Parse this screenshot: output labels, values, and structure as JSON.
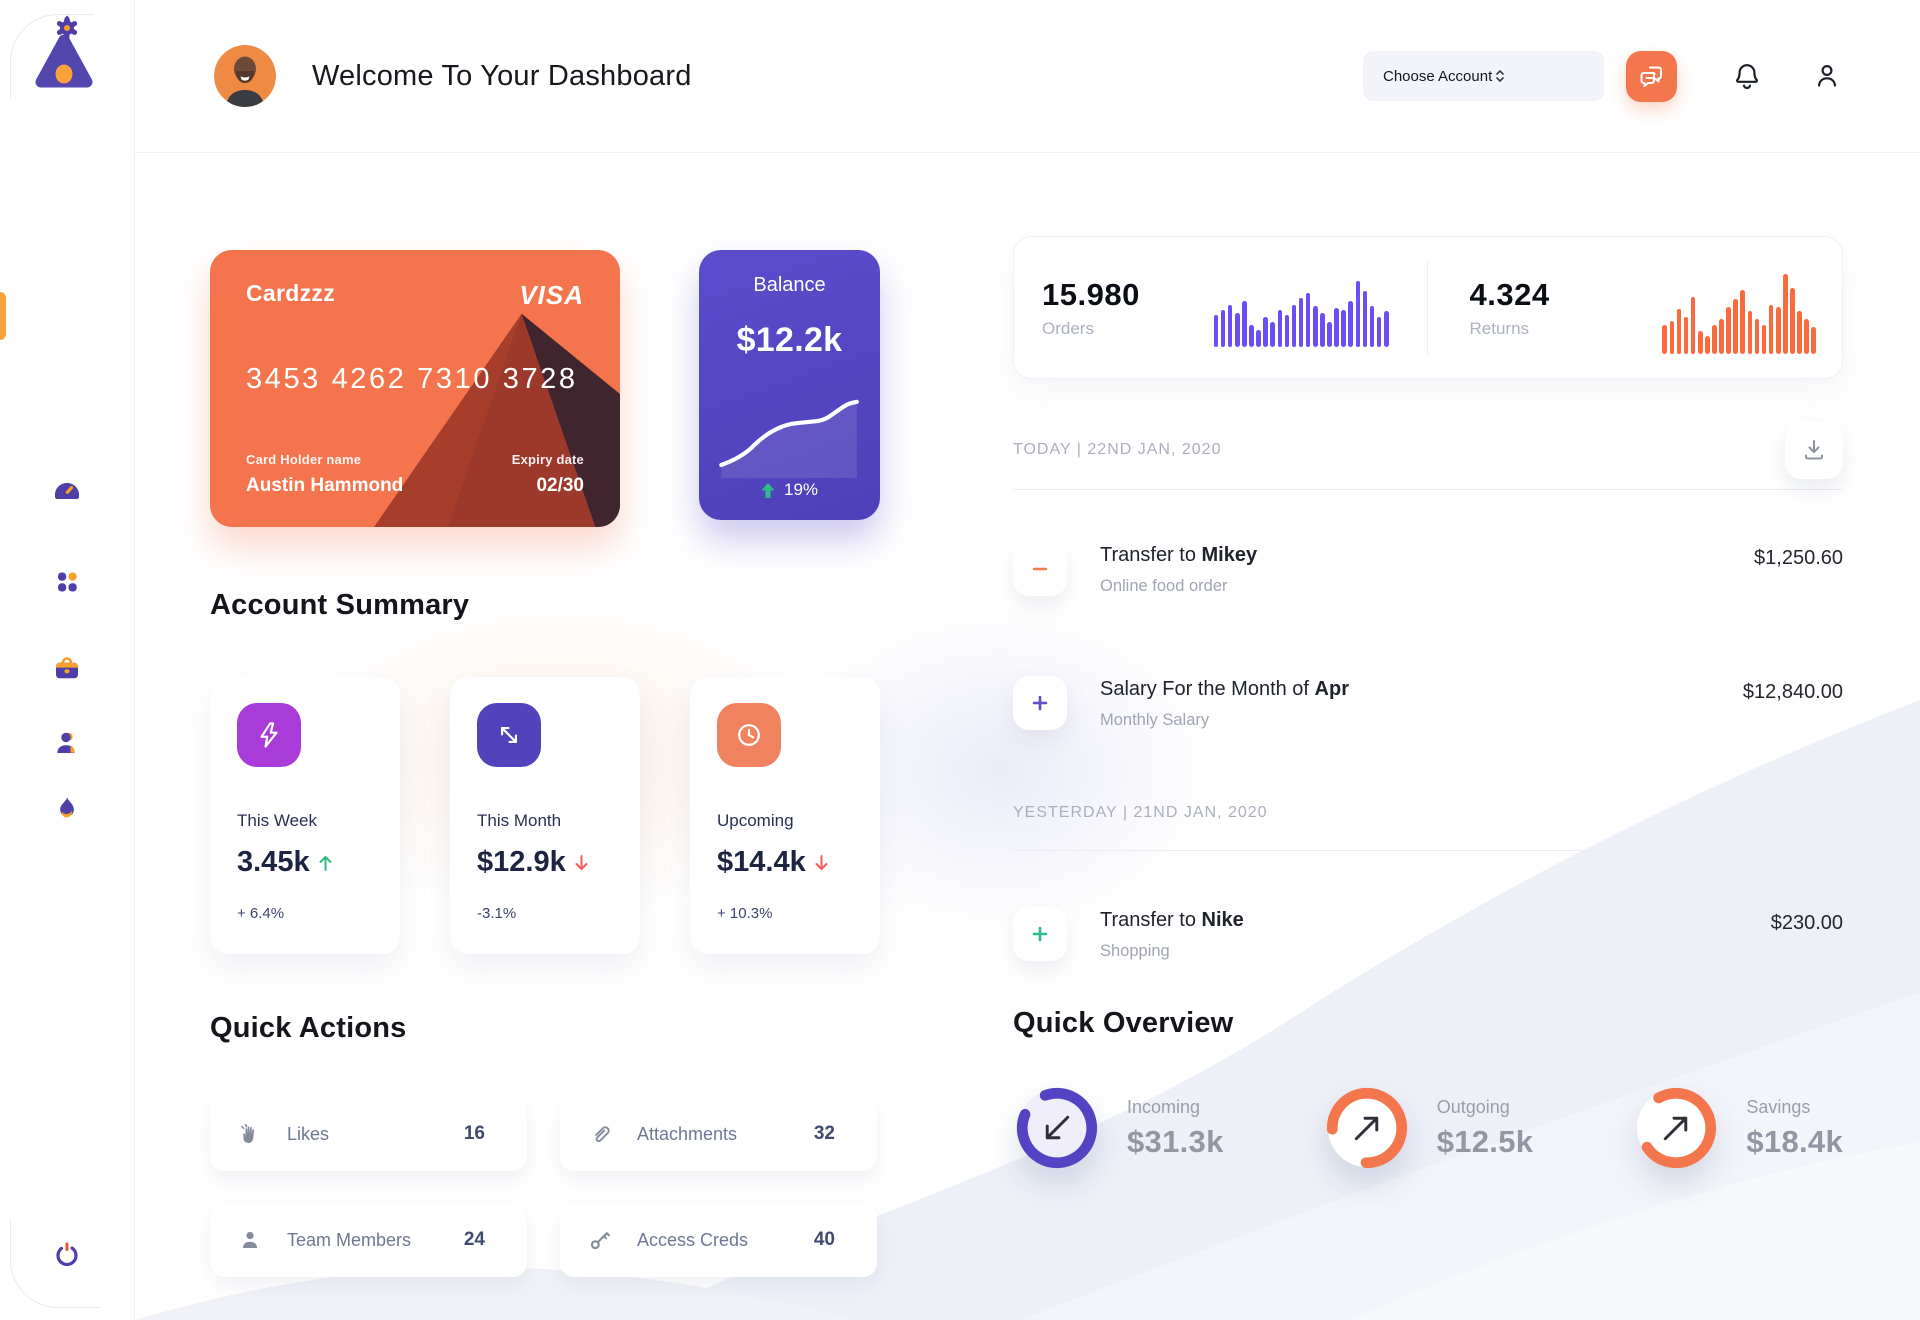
{
  "header": {
    "title": "Welcome To Your Dashboard",
    "account_select": {
      "label": "Choose Account"
    }
  },
  "sidebar": {
    "items": [
      {
        "id": "dashboard",
        "icon": "speedometer-icon",
        "active": true
      },
      {
        "id": "apps",
        "icon": "grid-dots-icon",
        "active": false
      },
      {
        "id": "work",
        "icon": "briefcase-icon",
        "active": false
      },
      {
        "id": "team",
        "icon": "person-icon",
        "active": false
      },
      {
        "id": "trending",
        "icon": "flame-icon",
        "active": false
      },
      {
        "id": "launch",
        "icon": "rocket-icon",
        "active": false
      },
      {
        "id": "settings",
        "icon": "gear-icon",
        "active": false
      }
    ],
    "logout_icon": "power-icon"
  },
  "credit_card": {
    "name": "Cardzzz",
    "brand": "VISA",
    "number": "3453 4262 7310 3728",
    "holder_label": "Card Holder name",
    "holder_name": "Austin Hammond",
    "expiry_label": "Expiry date",
    "expiry": "02/30"
  },
  "balance_card": {
    "title": "Balance",
    "amount": "$12.2k",
    "change": "19%",
    "trend": "up"
  },
  "account_summary": {
    "title": "Account Summary",
    "cards": [
      {
        "label": "This Week",
        "value": "3.45k",
        "arrow": "up",
        "delta": "+ 6.4%",
        "icon": "lightning-icon",
        "icon_bg": "#A93BD8"
      },
      {
        "label": "This Month",
        "value": "$12.9k",
        "arrow": "down",
        "delta": "-3.1%",
        "icon": "diagonal-arrows-icon",
        "icon_bg": "#5243BC"
      },
      {
        "label": "Upcoming",
        "value": "$14.4k",
        "arrow": "down",
        "delta": "+ 10.3%",
        "icon": "clock-icon",
        "icon_bg": "#F1825F"
      }
    ]
  },
  "quick_actions": {
    "title": "Quick Actions",
    "items": [
      {
        "label": "Likes",
        "count": "16",
        "icon": "clap-icon"
      },
      {
        "label": "Attachments",
        "count": "32",
        "icon": "paperclip-icon"
      },
      {
        "label": "Team Members",
        "count": "24",
        "icon": "member-icon"
      },
      {
        "label": "Access Creds",
        "count": "40",
        "icon": "key-icon"
      }
    ]
  },
  "stats": {
    "orders": {
      "value": "15.980",
      "label": "Orders"
    },
    "returns": {
      "value": "4.324",
      "label": "Returns"
    }
  },
  "chart_data": [
    {
      "type": "bar",
      "name": "orders-sparkline",
      "color": "#6C4EF5",
      "values": [
        38,
        44,
        50,
        40,
        54,
        26,
        20,
        36,
        30,
        44,
        38,
        50,
        58,
        64,
        48,
        40,
        30,
        46,
        44,
        54,
        78,
        66,
        48,
        36,
        42
      ]
    },
    {
      "type": "bar",
      "name": "returns-sparkline",
      "color": "#F96A3D",
      "values": [
        28,
        32,
        44,
        36,
        56,
        22,
        18,
        28,
        34,
        46,
        54,
        62,
        42,
        34,
        28,
        48,
        46,
        78,
        64,
        42,
        34,
        26
      ]
    },
    {
      "type": "line",
      "name": "balance-trend",
      "color": "#FFFFFF",
      "points": [
        [
          6,
          98
        ],
        [
          28,
          90
        ],
        [
          52,
          66
        ],
        [
          76,
          54
        ],
        [
          98,
          52
        ],
        [
          116,
          50
        ],
        [
          128,
          42
        ],
        [
          142,
          32
        ],
        [
          152,
          30
        ]
      ]
    }
  ],
  "transactions": {
    "sections": [
      {
        "date_label": "TODAY | 22ND JAN, 2020",
        "rows": [
          {
            "title_prefix": "Transfer to ",
            "title_bold": "Mikey",
            "subtitle": "Online food order",
            "amount": "$1,250.60",
            "icon": "minus-icon",
            "icon_color": "#F4764D"
          },
          {
            "title_prefix": "Salary For the Month of ",
            "title_bold": "Apr",
            "subtitle": "Monthly Salary",
            "amount": "$12,840.00",
            "icon": "plus-icon",
            "icon_color": "#5B4FC8"
          }
        ]
      },
      {
        "date_label": "YESTERDAY | 21ND JAN, 2020",
        "rows": [
          {
            "title_prefix": "Transfer to ",
            "title_bold": "Nike",
            "subtitle": "Shopping",
            "amount": "$230.00",
            "icon": "plus-icon",
            "icon_color": "#2EBD85"
          }
        ]
      }
    ]
  },
  "quick_overview": {
    "title": "Quick Overview",
    "items": [
      {
        "label": "Incoming",
        "value": "$31.3k",
        "percent": 87,
        "rotate": 250,
        "color": "#5443C2",
        "arrow": "down-left"
      },
      {
        "label": "Outgoing",
        "value": "$12.5k",
        "percent": 76,
        "rotate": 178,
        "color": "#F4764D",
        "arrow": "up-right"
      },
      {
        "label": "Savings",
        "value": "$18.4k",
        "percent": 74,
        "rotate": 240,
        "color": "#F4764D",
        "arrow": "up-right"
      }
    ]
  },
  "colors": {
    "accent_orange": "#F4764D",
    "accent_purple": "#5443C2",
    "amber": "#F7A128",
    "green": "#2EBD85",
    "red": "#F05B5B"
  }
}
